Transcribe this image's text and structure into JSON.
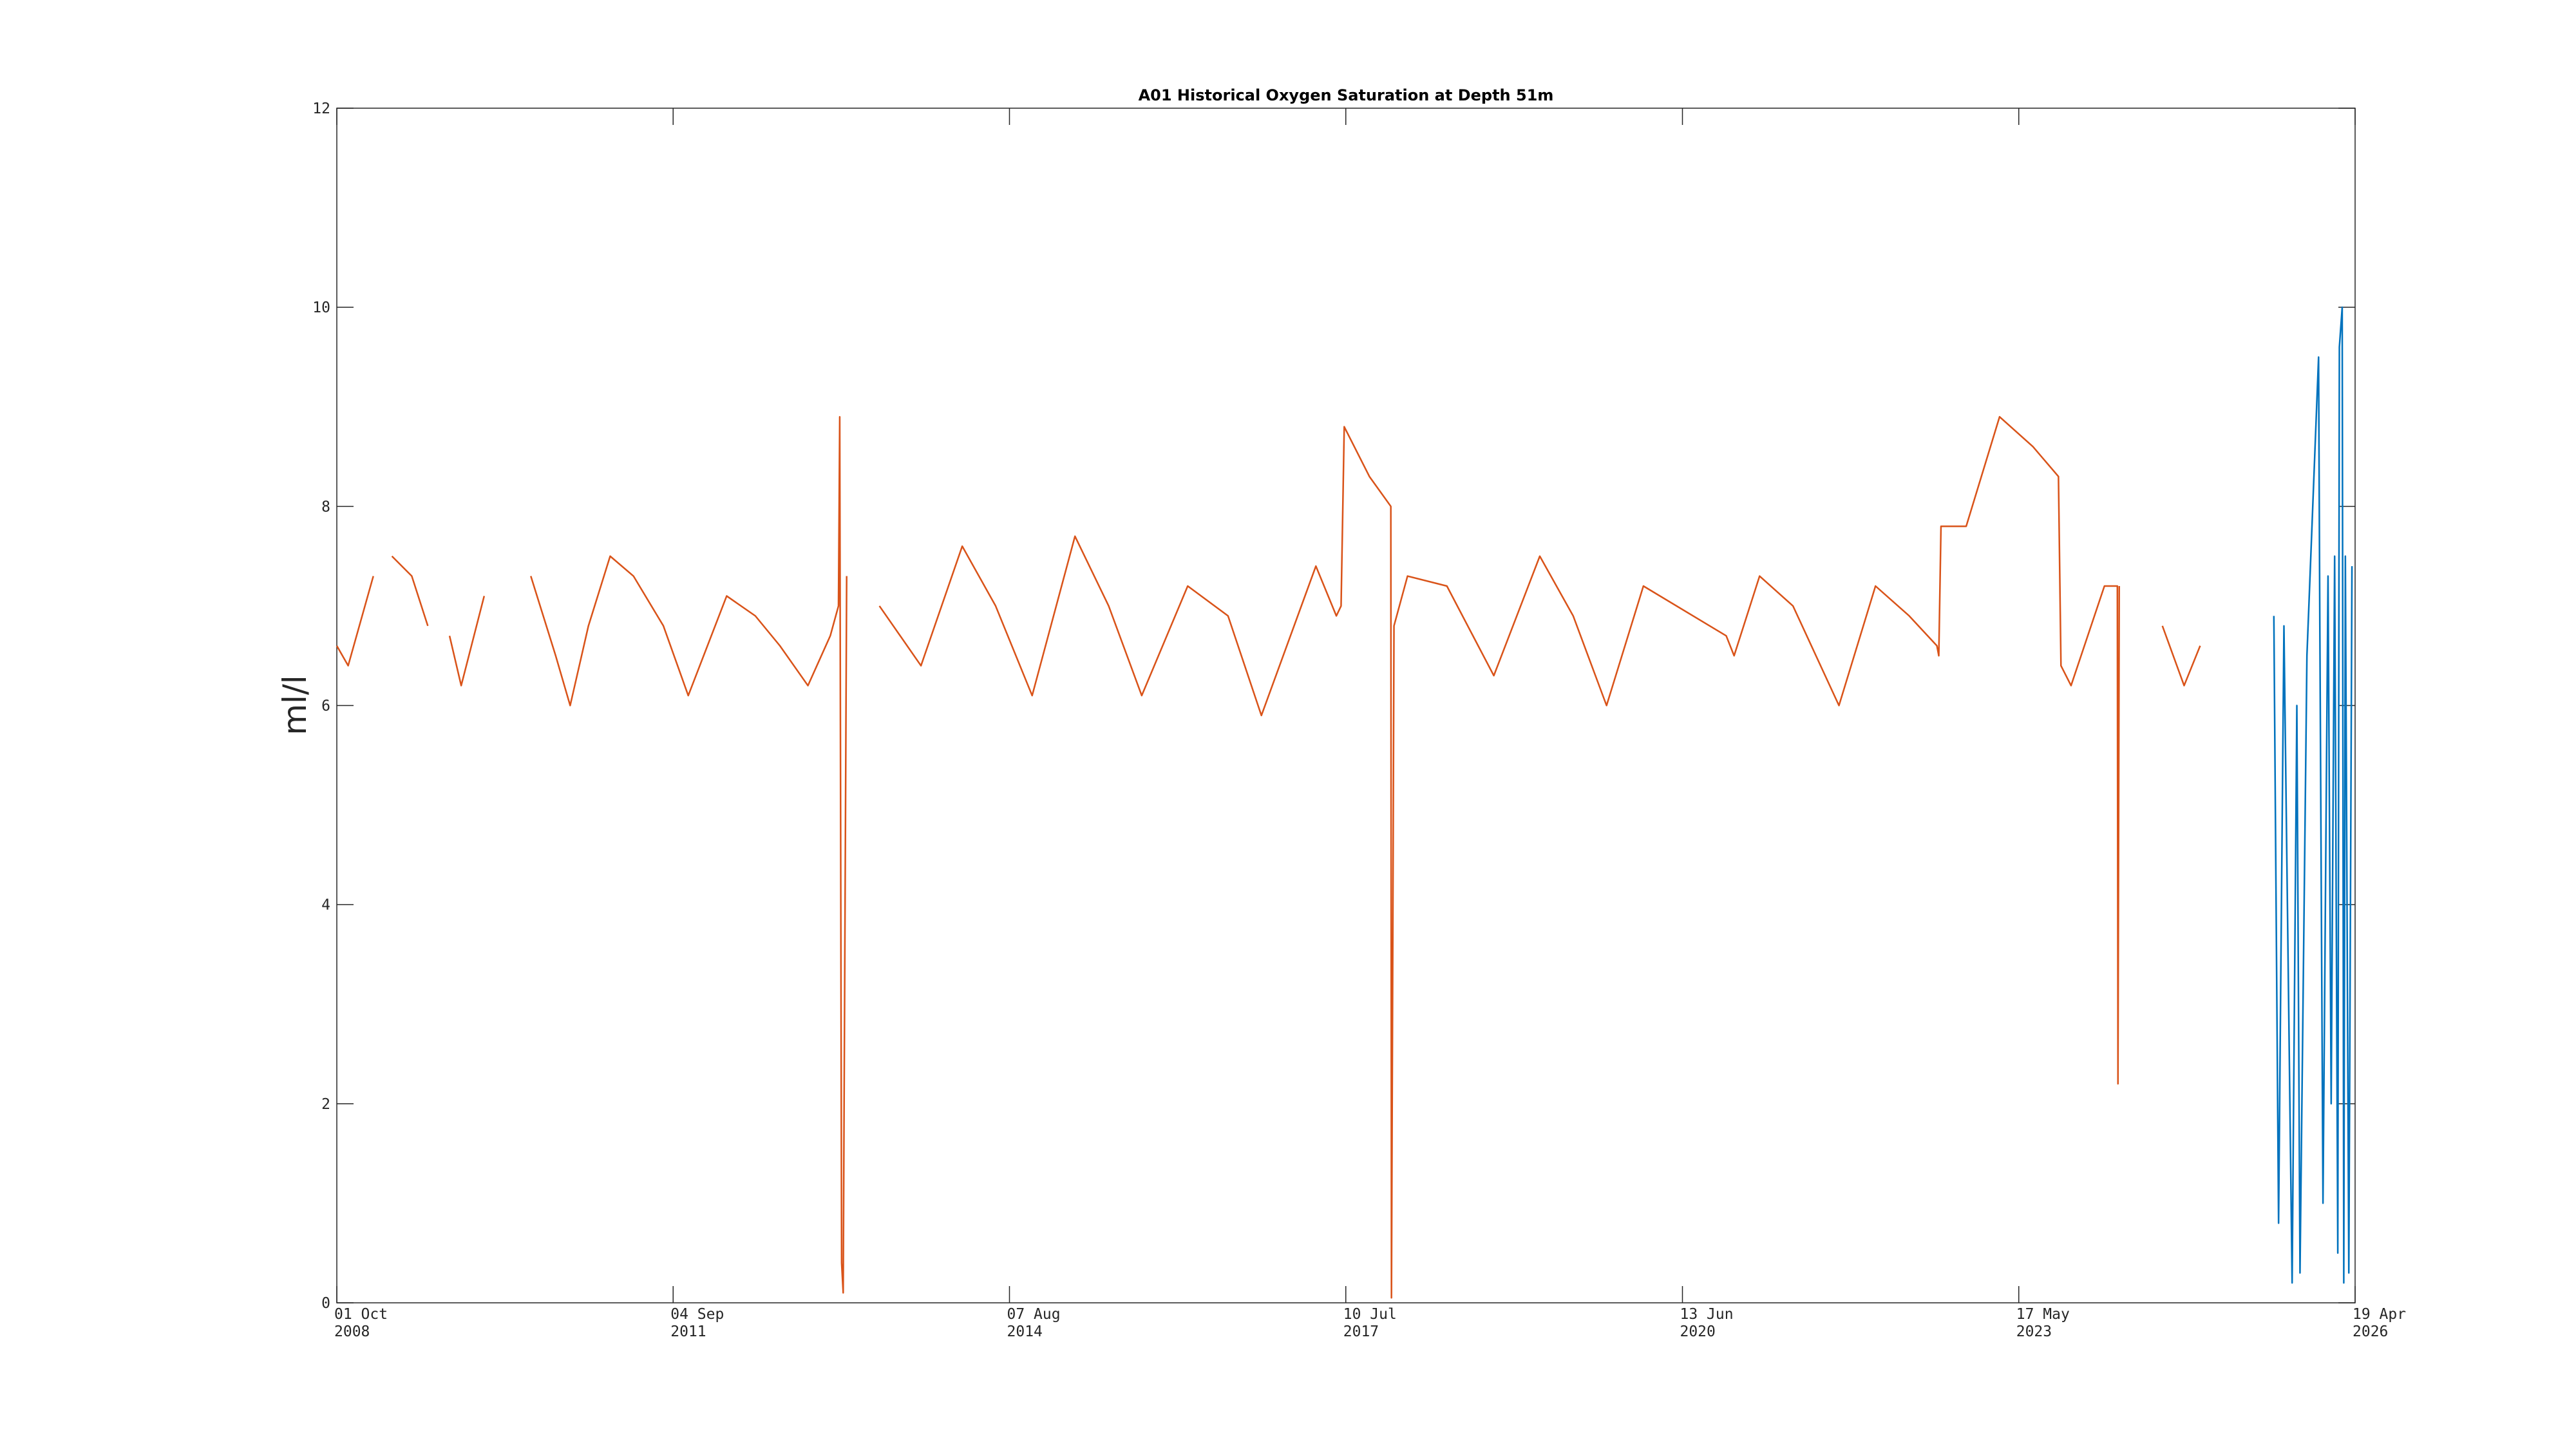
{
  "chart_data": {
    "type": "line",
    "title": "A01 Historical Oxygen Saturation at Depth 51m",
    "y_label": "ml/l",
    "xlim": [
      "2008-10-01",
      "2026-04-19"
    ],
    "xticks": [
      {
        "value": "2008-10-01",
        "label": "01 Oct 2008"
      },
      {
        "value": "2011-09-04",
        "label": "04 Sep 2011"
      },
      {
        "value": "2014-08-07",
        "label": "07 Aug 2014"
      },
      {
        "value": "2017-07-10",
        "label": "10 Jul 2017"
      },
      {
        "value": "2020-06-13",
        "label": "13 Jun 2020"
      },
      {
        "value": "2023-05-17",
        "label": "17 May 2023"
      },
      {
        "value": "2026-04-19",
        "label": "19 Apr 2026"
      }
    ],
    "ylim": [
      0,
      12
    ],
    "yticks": [
      0,
      2,
      4,
      6,
      8,
      10,
      12
    ],
    "grid": false,
    "series": [
      {
        "color": "#d95319",
        "x": [
          "2008-10-01",
          "2008-11-06",
          "2009-01-25",
          "2009-02-20",
          "2009-03-25",
          "2009-05-27",
          "2009-07-17",
          "2009-08-20",
          "2009-09-24",
          "2009-10-31",
          "2010-01-12",
          "2010-03-15",
          "2010-06-09",
          "2010-08-27",
          "2010-10-12",
          "2010-12-09",
          "2011-02-16",
          "2011-05-01",
          "2011-08-04",
          "2011-10-22",
          "2012-02-21",
          "2012-05-22",
          "2012-08-08",
          "2012-11-05",
          "2013-01-15",
          "2013-02-10",
          "2013-02-14",
          "2013-02-20",
          "2013-02-25",
          "2013-03-08",
          "2013-04-20",
          "2013-06-20",
          "2013-10-30",
          "2014-03-10",
          "2014-06-24",
          "2014-10-18",
          "2015-03-03",
          "2015-06-18",
          "2015-10-01",
          "2016-02-24",
          "2016-07-01",
          "2016-10-15",
          "2017-04-06",
          "2017-06-10",
          "2017-06-25",
          "2017-07-05",
          "2017-09-23",
          "2017-11-30",
          "2017-12-02",
          "2017-12-10",
          "2018-01-22",
          "2018-05-27",
          "2018-10-23",
          "2019-03-18",
          "2019-07-02",
          "2019-10-16",
          "2020-02-10",
          "2020-10-30",
          "2020-11-24",
          "2021-02-13",
          "2021-05-30",
          "2021-10-23",
          "2022-02-16",
          "2022-06-03",
          "2022-08-30",
          "2022-09-05",
          "2022-09-12",
          "2022-12-01",
          "2023-03-17",
          "2023-07-01",
          "2023-09-20",
          "2023-09-28",
          "2023-10-30",
          "2024-02-13",
          "2024-03-25",
          "2024-03-27",
          "2024-03-31",
          "2024-06-01",
          "2024-08-15",
          "2024-10-23",
          "2024-12-13"
        ],
        "values": [
          6.6,
          6.4,
          7.3,
          null,
          7.5,
          7.3,
          6.8,
          null,
          6.7,
          6.2,
          7.1,
          null,
          7.3,
          6.5,
          6.0,
          6.8,
          7.5,
          7.3,
          6.8,
          6.1,
          7.1,
          6.9,
          6.6,
          6.2,
          6.7,
          7.0,
          8.9,
          0.4,
          0.1,
          7.3,
          null,
          7.0,
          6.4,
          7.6,
          7.0,
          6.1,
          7.7,
          7.0,
          6.1,
          7.2,
          6.9,
          5.9,
          7.4,
          6.9,
          7.0,
          8.8,
          8.3,
          8.0,
          0.05,
          6.8,
          7.3,
          7.2,
          6.3,
          7.5,
          6.9,
          6.0,
          7.2,
          6.7,
          6.5,
          7.3,
          7.0,
          6.0,
          7.2,
          6.9,
          6.6,
          6.5,
          7.8,
          7.8,
          8.9,
          8.6,
          8.3,
          6.4,
          6.2,
          7.2,
          7.2,
          2.2,
          7.2,
          null,
          6.8,
          6.2,
          6.6
        ]
      },
      {
        "color": "#0072bd",
        "x": [
          "2025-08-04",
          "2025-08-19",
          "2025-09-05",
          "2025-10-01",
          "2025-10-16",
          "2025-10-26",
          "2025-11-17",
          "2025-12-24",
          "2025-12-28",
          "2026-01-07",
          "2026-01-23",
          "2026-02-02",
          "2026-02-13",
          "2026-02-23",
          "2026-02-28",
          "2026-03-09",
          "2026-03-14",
          "2026-03-19",
          "2026-03-30",
          "2026-04-09"
        ],
        "values": [
          6.9,
          0.8,
          6.8,
          0.2,
          6.0,
          0.3,
          6.5,
          9.5,
          6.8,
          1.0,
          7.3,
          2.0,
          7.5,
          0.5,
          9.6,
          10.0,
          0.2,
          7.5,
          0.3,
          7.4
        ]
      }
    ]
  }
}
